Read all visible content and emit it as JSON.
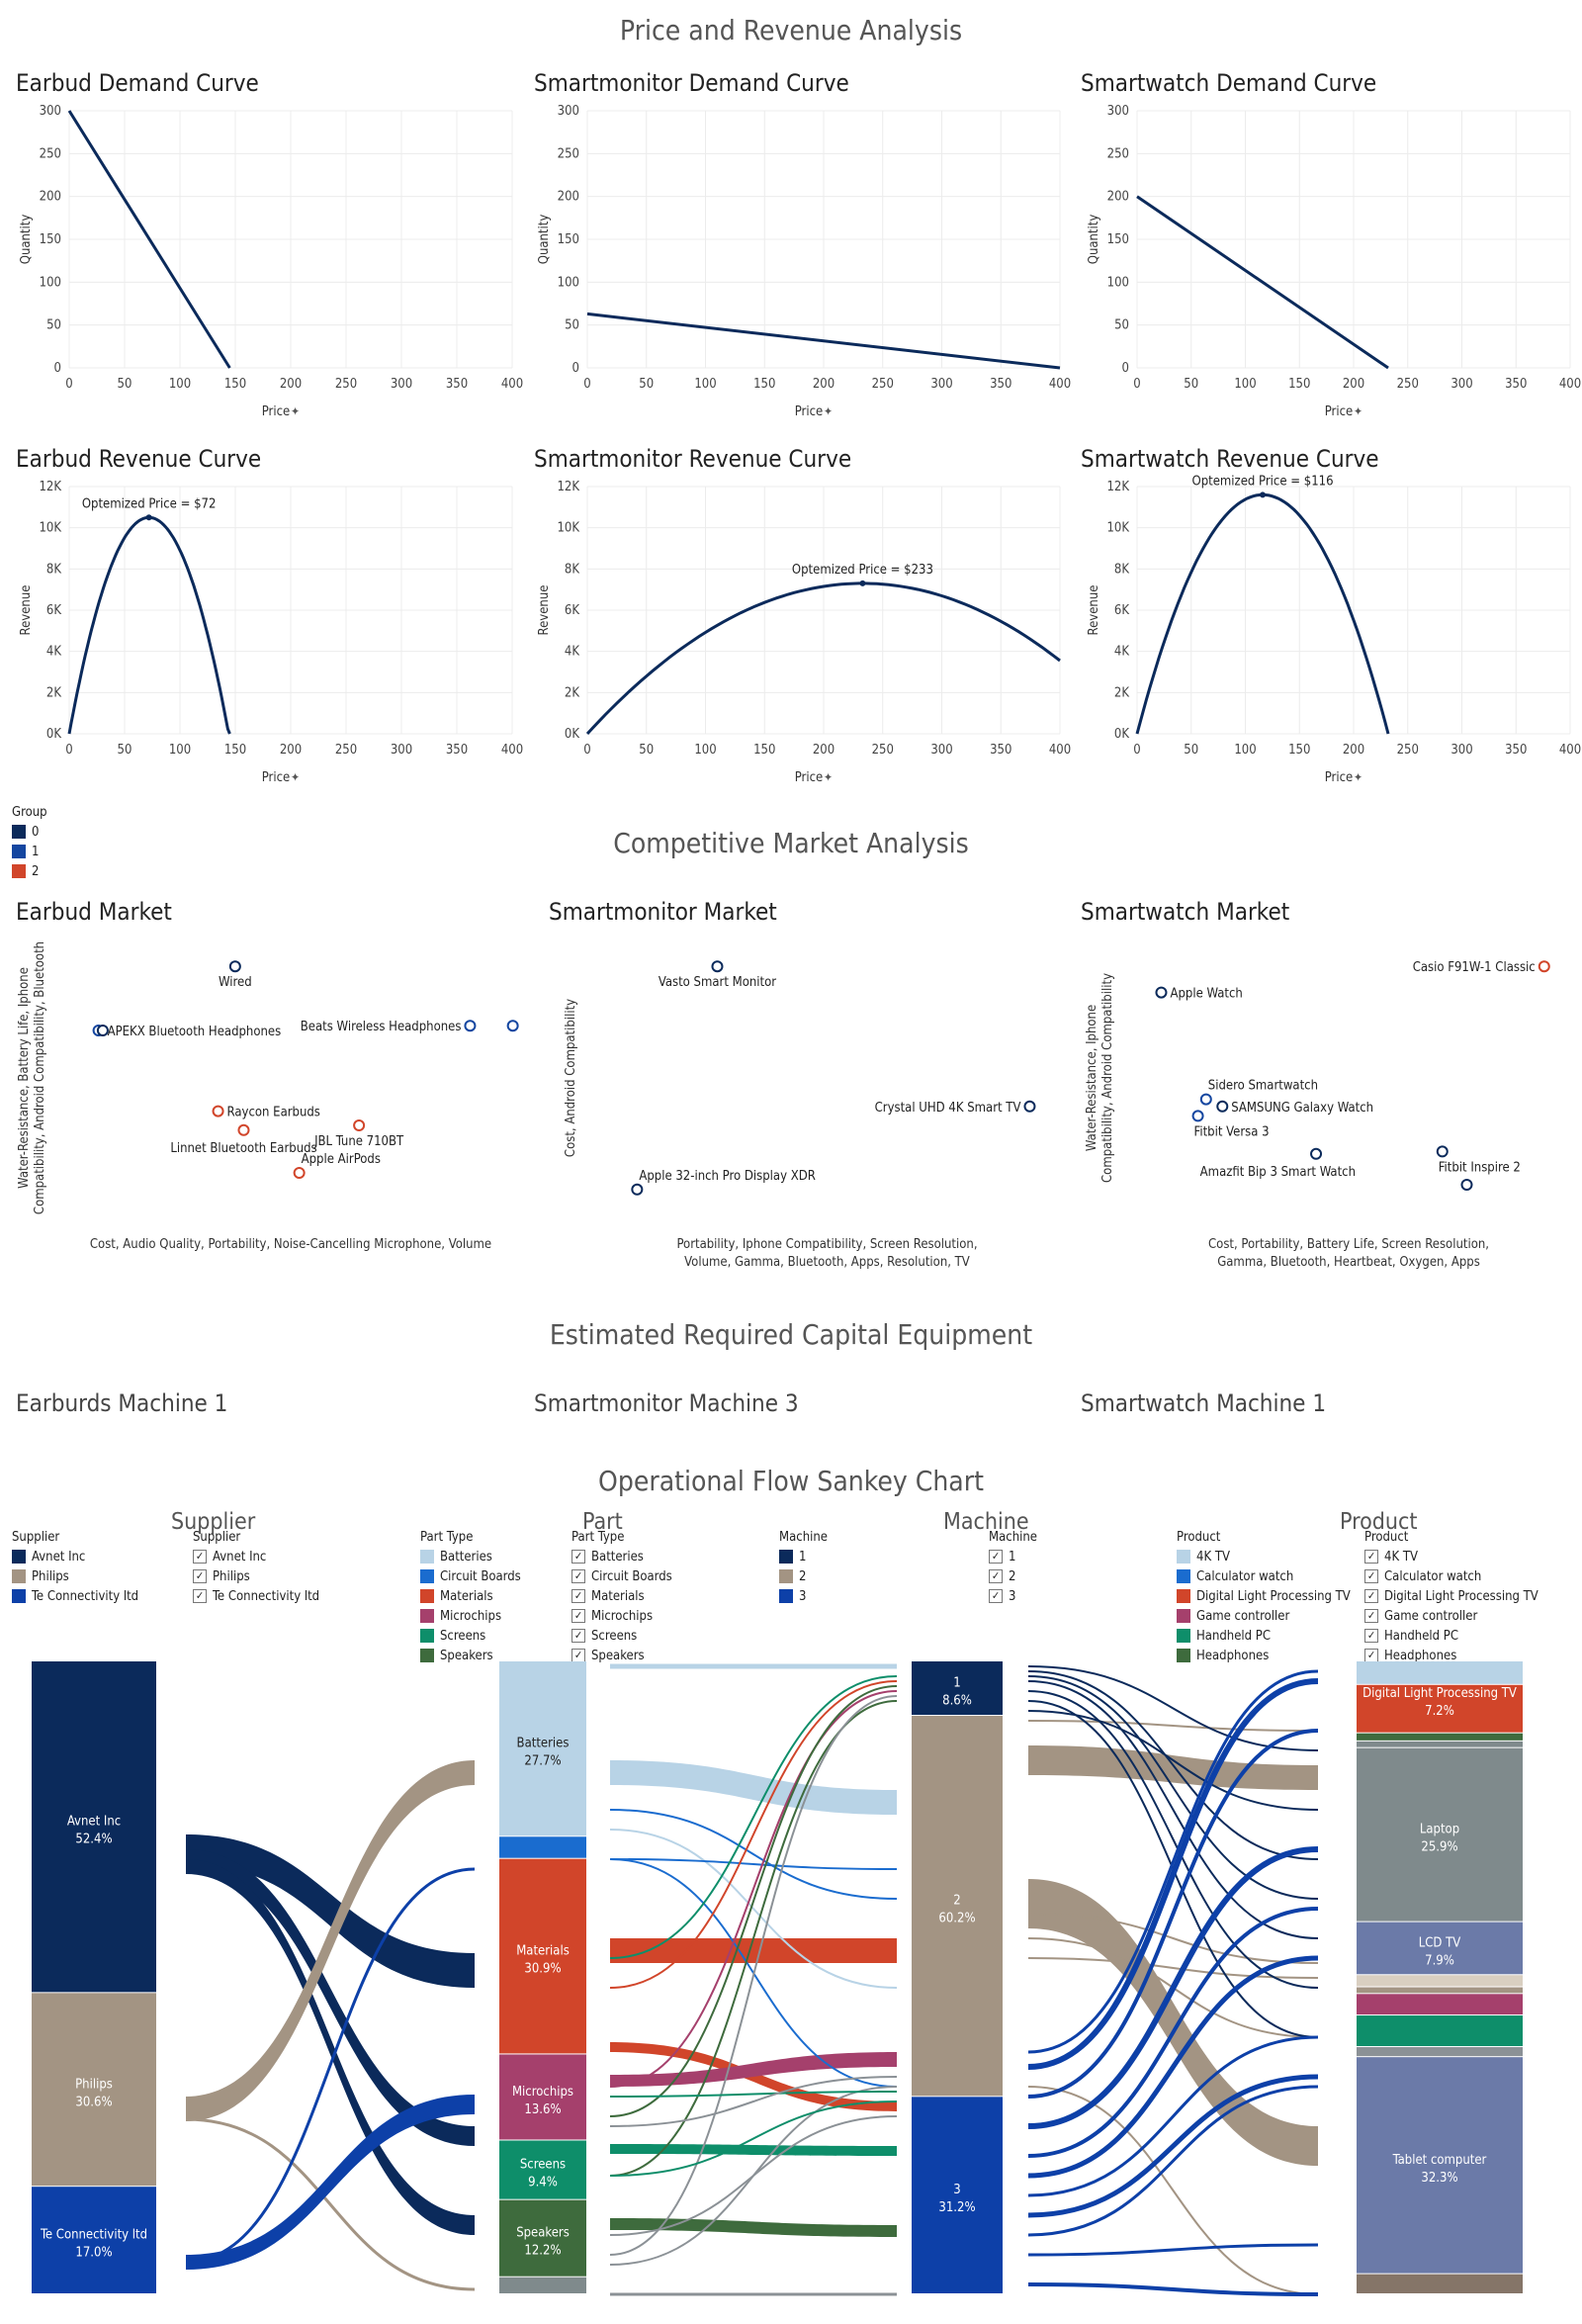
{
  "titles": {
    "price_revenue": "Price and Revenue Analysis",
    "competitive": "Competitive Market Analysis",
    "capital": "Estimated Required Capital Equipment",
    "sankey": "Operational Flow Sankey Chart"
  },
  "machines": {
    "earbuds": "Earburds Machine 1",
    "smartmonitor": "Smartmonitor Machine 3",
    "smartwatch": "Smartwatch Machine 1"
  },
  "group_legend": {
    "title": "Group",
    "items": [
      {
        "label": "0",
        "color": "#0b2a5b"
      },
      {
        "label": "1",
        "color": "#1446a0"
      },
      {
        "label": "2",
        "color": "#d1452a"
      }
    ]
  },
  "sankey_headers": [
    "Supplier",
    "Part",
    "Machine",
    "Product"
  ],
  "sankey_legends": [
    {
      "title": "Supplier",
      "type": "swatch",
      "items": [
        {
          "label": "Avnet Inc",
          "color": "#0b2a5b"
        },
        {
          "label": "Philips",
          "color": "#a39483"
        },
        {
          "label": "Te Connectivity ltd",
          "color": "#0d40a8"
        }
      ]
    },
    {
      "title": "Supplier",
      "type": "check",
      "items": [
        {
          "label": "Avnet Inc"
        },
        {
          "label": "Philips"
        },
        {
          "label": "Te Connectivity ltd"
        }
      ]
    },
    {
      "title": "Part Type",
      "type": "swatch",
      "items": [
        {
          "label": "Batteries",
          "color": "#b8d3e6"
        },
        {
          "label": "Circuit Boards",
          "color": "#1a6ccf"
        },
        {
          "label": "Materials",
          "color": "#d1452a"
        },
        {
          "label": "Microchips",
          "color": "#a5406c"
        },
        {
          "label": "Screens",
          "color": "#0e8e6a"
        },
        {
          "label": "Speakers",
          "color": "#3e6b3d"
        }
      ]
    },
    {
      "title": "Part Type",
      "type": "check",
      "items": [
        {
          "label": "Batteries"
        },
        {
          "label": "Circuit Boards"
        },
        {
          "label": "Materials"
        },
        {
          "label": "Microchips"
        },
        {
          "label": "Screens"
        },
        {
          "label": "Speakers"
        }
      ]
    },
    {
      "title": "Machine",
      "type": "swatch",
      "items": [
        {
          "label": "1",
          "color": "#0b2a5b"
        },
        {
          "label": "2",
          "color": "#a39483"
        },
        {
          "label": "3",
          "color": "#0d40a8"
        }
      ]
    },
    {
      "title": "Machine",
      "type": "check",
      "items": [
        {
          "label": "1"
        },
        {
          "label": "2"
        },
        {
          "label": "3"
        }
      ]
    },
    {
      "title": "Product",
      "type": "swatch",
      "items": [
        {
          "label": "4K TV",
          "color": "#b8d3e6"
        },
        {
          "label": "Calculator watch",
          "color": "#1a6ccf"
        },
        {
          "label": "Digital Light Processing TV",
          "color": "#d1452a"
        },
        {
          "label": "Game controller",
          "color": "#a5406c"
        },
        {
          "label": "Handheld PC",
          "color": "#0e8e6a"
        },
        {
          "label": "Headphones",
          "color": "#3e6b3d"
        }
      ]
    },
    {
      "title": "Product",
      "type": "check",
      "items": [
        {
          "label": "4K TV"
        },
        {
          "label": "Calculator watch"
        },
        {
          "label": "Digital Light Processing TV"
        },
        {
          "label": "Game controller"
        },
        {
          "label": "Handheld PC"
        },
        {
          "label": "Headphones"
        }
      ]
    }
  ],
  "chart_data": [
    {
      "id": "earbud-demand",
      "type": "line",
      "title": "Earbud Demand Curve",
      "xlabel": "Price",
      "ylabel": "Quantity",
      "xlim": [
        0,
        400
      ],
      "ylim": [
        0,
        300
      ],
      "xticks": [
        0,
        50,
        100,
        150,
        200,
        250,
        300,
        350,
        400
      ],
      "yticks": [
        0,
        50,
        100,
        150,
        200,
        250,
        300
      ],
      "ytick_labels": [
        "0",
        "50",
        "100",
        "150",
        "200",
        "250",
        "300"
      ],
      "series": [
        {
          "x": [
            0,
            145
          ],
          "y": [
            300,
            0
          ]
        }
      ]
    },
    {
      "id": "smartmonitor-demand",
      "type": "line",
      "title": "Smartmonitor Demand Curve",
      "xlabel": "Price",
      "ylabel": "Quantity",
      "xlim": [
        0,
        400
      ],
      "ylim": [
        0,
        300
      ],
      "xticks": [
        0,
        50,
        100,
        150,
        200,
        250,
        300,
        350,
        400
      ],
      "yticks": [
        0,
        50,
        100,
        150,
        200,
        250,
        300
      ],
      "ytick_labels": [
        "0",
        "50",
        "100",
        "150",
        "200",
        "250",
        "300"
      ],
      "series": [
        {
          "x": [
            0,
            400
          ],
          "y": [
            63,
            0
          ]
        }
      ]
    },
    {
      "id": "smartwatch-demand",
      "type": "line",
      "title": "Smartwatch Demand Curve",
      "xlabel": "Price",
      "ylabel": "Quantity",
      "xlim": [
        0,
        400
      ],
      "ylim": [
        0,
        300
      ],
      "xticks": [
        0,
        50,
        100,
        150,
        200,
        250,
        300,
        350,
        400
      ],
      "yticks": [
        0,
        50,
        100,
        150,
        200,
        250,
        300
      ],
      "ytick_labels": [
        "0",
        "50",
        "100",
        "150",
        "200",
        "250",
        "300"
      ],
      "series": [
        {
          "x": [
            0,
            232
          ],
          "y": [
            200,
            0
          ]
        }
      ]
    },
    {
      "id": "earbud-revenue",
      "type": "line",
      "title": "Earbud Revenue Curve",
      "xlabel": "Price",
      "ylabel": "Revenue",
      "xlim": [
        0,
        400
      ],
      "ylim": [
        0,
        12000
      ],
      "xticks": [
        0,
        50,
        100,
        150,
        200,
        250,
        300,
        350,
        400
      ],
      "yticks": [
        0,
        2000,
        4000,
        6000,
        8000,
        10000,
        12000
      ],
      "ytick_labels": [
        "0K",
        "2K",
        "4K",
        "6K",
        "8K",
        "10K",
        "12K"
      ],
      "curve": {
        "kind": "parabola",
        "x0": 0,
        "x1": 145,
        "peak_x": 72,
        "peak_y": 10500
      },
      "annotation": "Optemized Price = $72"
    },
    {
      "id": "smartmonitor-revenue",
      "type": "line",
      "title": "Smartmonitor Revenue Curve",
      "xlabel": "Price",
      "ylabel": "Revenue",
      "xlim": [
        0,
        400
      ],
      "ylim": [
        0,
        12000
      ],
      "xticks": [
        0,
        50,
        100,
        150,
        200,
        250,
        300,
        350,
        400
      ],
      "yticks": [
        0,
        2000,
        4000,
        6000,
        8000,
        10000,
        12000
      ],
      "ytick_labels": [
        "0K",
        "2K",
        "4K",
        "6K",
        "8K",
        "10K",
        "12K"
      ],
      "curve": {
        "kind": "parabola",
        "x0": 0,
        "x1": 466,
        "peak_x": 233,
        "peak_y": 7300,
        "x_end": 400
      },
      "annotation": "Optemized Price = $233"
    },
    {
      "id": "smartwatch-revenue",
      "type": "line",
      "title": "Smartwatch Revenue Curve",
      "xlabel": "Price",
      "ylabel": "Revenue",
      "xlim": [
        0,
        400
      ],
      "ylim": [
        0,
        12000
      ],
      "xticks": [
        0,
        50,
        100,
        150,
        200,
        250,
        300,
        350,
        400
      ],
      "yticks": [
        0,
        2000,
        4000,
        6000,
        8000,
        10000,
        12000
      ],
      "ytick_labels": [
        "0K",
        "2K",
        "4K",
        "6K",
        "8K",
        "10K",
        "12K"
      ],
      "curve": {
        "kind": "parabola",
        "x0": 0,
        "x1": 232,
        "peak_x": 116,
        "peak_y": 11600
      },
      "annotation": "Optemized Price = $116"
    },
    {
      "id": "earbud-market",
      "type": "scatter",
      "title": "Earbud Market",
      "xlabel": "Cost, Audio Quality, Portability, Noise-Cancelling Microphone, Volume",
      "ylabel": "Water-Resistance, Battery Life, Iphone Compatibility, Android Compatibility, Bluetooth",
      "xlim": [
        0,
        1
      ],
      "ylim": [
        0,
        1
      ],
      "points": [
        {
          "label": "Wired",
          "x": 0.37,
          "y": 0.97,
          "group": 0,
          "label_pos": "below"
        },
        {
          "label": "APEKX Bluetooth Headphones",
          "x": 0.05,
          "y": 0.7,
          "group": 1,
          "label_pos": "right"
        },
        {
          "label": "",
          "x": 0.06,
          "y": 0.7,
          "group": 0,
          "label_pos": "none"
        },
        {
          "label": "Beats Wireless Headphones",
          "x": 0.92,
          "y": 0.72,
          "group": 1,
          "label_pos": "left"
        },
        {
          "label": "",
          "x": 1.02,
          "y": 0.72,
          "group": 1,
          "label_pos": "none"
        },
        {
          "label": "Raycon Earbuds",
          "x": 0.33,
          "y": 0.36,
          "group": 2,
          "label_pos": "right"
        },
        {
          "label": "JBL Tune 710BT",
          "x": 0.66,
          "y": 0.3,
          "group": 2,
          "label_pos": "below"
        },
        {
          "label": "Linnet Bluetooth Earbuds",
          "x": 0.39,
          "y": 0.28,
          "group": 2,
          "label_pos": "belowcenter"
        },
        {
          "label": "Apple AirPods",
          "x": 0.52,
          "y": 0.1,
          "group": 2,
          "label_pos": "aboveright"
        }
      ]
    },
    {
      "id": "smartmonitor-market",
      "type": "scatter",
      "title": "Smartmonitor Market",
      "xlabel": "Portability, Iphone Compatibility, Screen Resolution, Volume, Gamma, Bluetooth, Apps, Resolution, TV",
      "ylabel": "Cost, Android Compatibility",
      "xlim": [
        0,
        1
      ],
      "ylim": [
        0,
        1
      ],
      "points": [
        {
          "label": "Vasto Smart Monitor",
          "x": 0.24,
          "y": 0.97,
          "group": 0,
          "label_pos": "below"
        },
        {
          "label": "Crystal UHD 4K Smart TV",
          "x": 0.98,
          "y": 0.38,
          "group": 0,
          "label_pos": "left"
        },
        {
          "label": "Apple 32-inch Pro Display XDR",
          "x": 0.05,
          "y": 0.03,
          "group": 0,
          "label_pos": "aboveright"
        }
      ]
    },
    {
      "id": "smartwatch-market",
      "type": "scatter",
      "title": "Smartwatch Market",
      "xlabel": "Cost, Portability, Battery Life, Screen Resolution, Gamma, Bluetooth, Heartbeat, Oxygen, Apps",
      "ylabel": "Water-Resistance, Iphone Compatibility, Android Compatibility",
      "xlim": [
        0,
        1
      ],
      "ylim": [
        0,
        1
      ],
      "points": [
        {
          "label": "Casio F91W-1 Classic",
          "x": 0.98,
          "y": 0.97,
          "group": 2,
          "label_pos": "left"
        },
        {
          "label": "Apple Watch",
          "x": 0.04,
          "y": 0.86,
          "group": 0,
          "label_pos": "right"
        },
        {
          "label": "Sidero Smartwatch",
          "x": 0.15,
          "y": 0.41,
          "group": 1,
          "label_pos": "aboveright"
        },
        {
          "label": "SAMSUNG Galaxy Watch",
          "x": 0.19,
          "y": 0.38,
          "group": 0,
          "label_pos": "right"
        },
        {
          "label": "Fitbit Versa 3",
          "x": 0.13,
          "y": 0.34,
          "group": 1,
          "label_pos": "belowright"
        },
        {
          "label": "Amazfit Bip 3 Smart Watch",
          "x": 0.42,
          "y": 0.18,
          "group": 0,
          "label_pos": "belowleft"
        },
        {
          "label": "Fitbit Inspire 2",
          "x": 0.73,
          "y": 0.19,
          "group": 0,
          "label_pos": "belowright"
        },
        {
          "label": "",
          "x": 0.79,
          "y": 0.05,
          "group": 0,
          "label_pos": "none"
        }
      ]
    },
    {
      "id": "sankey",
      "type": "sankey",
      "title": "Operational Flow Sankey Chart",
      "columns": [
        {
          "name": "Supplier",
          "nodes": [
            {
              "label": "Avnet Inc",
              "pct": "52.4%",
              "value": 52.4,
              "color": "#0b2a5b"
            },
            {
              "label": "Philips",
              "pct": "30.6%",
              "value": 30.6,
              "color": "#a39483"
            },
            {
              "label": "Te Connectivity ltd",
              "pct": "17.0%",
              "value": 17.0,
              "color": "#0d40a8"
            }
          ]
        },
        {
          "name": "Part",
          "nodes": [
            {
              "label": "Batteries",
              "pct": "27.7%",
              "value": 27.7,
              "color": "#b8d3e6"
            },
            {
              "label": "",
              "pct": "",
              "value": 3.5,
              "color": "#1a6ccf"
            },
            {
              "label": "Materials",
              "pct": "30.9%",
              "value": 30.9,
              "color": "#d1452a"
            },
            {
              "label": "Microchips",
              "pct": "13.6%",
              "value": 13.6,
              "color": "#a5406c"
            },
            {
              "label": "Screens",
              "pct": "9.4%",
              "value": 9.4,
              "color": "#0e8e6a"
            },
            {
              "label": "Speakers",
              "pct": "12.2%",
              "value": 12.2,
              "color": "#3e6b3d"
            },
            {
              "label": "",
              "pct": "",
              "value": 2.7,
              "color": "#7f8a8c"
            }
          ]
        },
        {
          "name": "Machine",
          "nodes": [
            {
              "label": "1",
              "pct": "8.6%",
              "value": 8.6,
              "color": "#0b2a5b"
            },
            {
              "label": "2",
              "pct": "60.2%",
              "value": 60.2,
              "color": "#a39483"
            },
            {
              "label": "3",
              "pct": "31.2%",
              "value": 31.2,
              "color": "#0d40a8"
            }
          ]
        },
        {
          "name": "Product",
          "nodes": [
            {
              "label": "",
              "pct": "",
              "value": 3.5,
              "color": "#b8d3e6"
            },
            {
              "label": "Digital Light Processing TV",
              "pct": "7.2%",
              "value": 7.2,
              "color": "#d1452a"
            },
            {
              "label": "",
              "pct": "",
              "value": 1.2,
              "color": "#3e6b3d"
            },
            {
              "label": "",
              "pct": "",
              "value": 1.0,
              "color": "#7f8a8c"
            },
            {
              "label": "Laptop",
              "pct": "25.9%",
              "value": 25.9,
              "color": "#7f8a8c"
            },
            {
              "label": "LCD TV",
              "pct": "7.9%",
              "value": 7.9,
              "color": "#6b7aa8"
            },
            {
              "label": "",
              "pct": "",
              "value": 1.8,
              "color": "#d9cfc1"
            },
            {
              "label": "",
              "pct": "",
              "value": 1.0,
              "color": "#a39483"
            },
            {
              "label": "",
              "pct": "",
              "value": 3.2,
              "color": "#a5406c"
            },
            {
              "label": "",
              "pct": "",
              "value": 4.7,
              "color": "#0e8e6a"
            },
            {
              "label": "",
              "pct": "",
              "value": 1.5,
              "color": "#8b9196"
            },
            {
              "label": "Tablet computer",
              "pct": "32.3%",
              "value": 32.3,
              "color": "#6b7aa8"
            },
            {
              "label": "",
              "pct": "",
              "value": 3.0,
              "color": "#857568"
            }
          ]
        }
      ]
    }
  ]
}
